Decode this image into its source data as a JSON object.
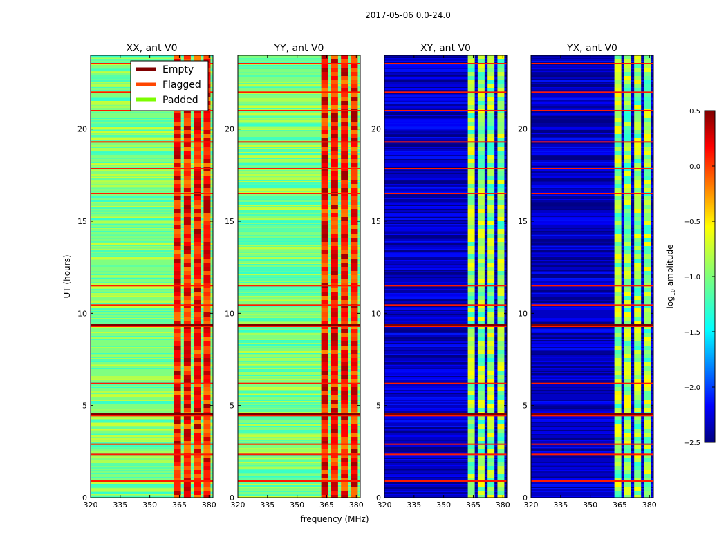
{
  "figure": {
    "suptitle": "2017-05-06 0.0-24.0",
    "ylabel": "UT (hours)",
    "xlabel": "frequency (MHz)"
  },
  "chart_data": [
    {
      "type": "heatmap",
      "title": "XX, ant V0",
      "xlim": [
        320,
        382
      ],
      "ylim": [
        0,
        24
      ],
      "xticks": [
        "320",
        "335",
        "350",
        "365",
        "380"
      ],
      "yticks": [
        "0",
        "5",
        "10",
        "15",
        "20"
      ],
      "baseline_log10_amplitude": -1.0,
      "rfi_band_log10_amplitude": 0.0
    },
    {
      "type": "heatmap",
      "title": "YY, ant V0",
      "xlim": [
        320,
        382
      ],
      "ylim": [
        0,
        24
      ],
      "xticks": [
        "320",
        "335",
        "350",
        "365",
        "380"
      ],
      "yticks": [
        "0",
        "5",
        "10",
        "15",
        "20"
      ],
      "baseline_log10_amplitude": -1.0,
      "rfi_band_log10_amplitude": 0.0
    },
    {
      "type": "heatmap",
      "title": "XY, ant V0",
      "xlim": [
        320,
        382
      ],
      "ylim": [
        0,
        24
      ],
      "xticks": [
        "320",
        "335",
        "350",
        "365",
        "380"
      ],
      "yticks": [
        "0",
        "5",
        "10",
        "15",
        "20"
      ],
      "baseline_log10_amplitude": -2.3,
      "rfi_band_log10_amplitude": -1.0
    },
    {
      "type": "heatmap",
      "title": "YX, ant V0",
      "xlim": [
        320,
        382
      ],
      "ylim": [
        0,
        24
      ],
      "xticks": [
        "320",
        "335",
        "350",
        "365",
        "380"
      ],
      "yticks": [
        "0",
        "5",
        "10",
        "15",
        "20"
      ],
      "baseline_log10_amplitude": -2.3,
      "rfi_band_log10_amplitude": -1.0
    }
  ],
  "legend": {
    "placement": "top-right of first panel",
    "items": [
      {
        "label": "Empty",
        "color": "#800000"
      },
      {
        "label": "Flagged",
        "color": "#ff4500"
      },
      {
        "label": "Padded",
        "color": "#7cfc00"
      }
    ]
  },
  "colorbar": {
    "label_prefix": "log",
    "label_sub": "10",
    "label_suffix": " amplitude",
    "range": [
      -2.5,
      0.5
    ],
    "ticks": [
      "0.5",
      "0.0",
      "−0.5",
      "−1.0",
      "−1.5",
      "−2.0",
      "−2.5"
    ],
    "tick_values": [
      0.5,
      0.0,
      -0.5,
      -1.0,
      -1.5,
      -2.0,
      -2.5
    ],
    "colormap": "jet"
  },
  "flagged_rows_hours": [
    0.9,
    2.35,
    2.9,
    4.45,
    6.2,
    9.3,
    10.45,
    11.5,
    16.5,
    17.85,
    19.3,
    21.0,
    22.0,
    23.55
  ],
  "empty_rows_hours": [
    4.5,
    9.35
  ],
  "rfi_columns_mhz": [
    364,
    369,
    374,
    379
  ]
}
